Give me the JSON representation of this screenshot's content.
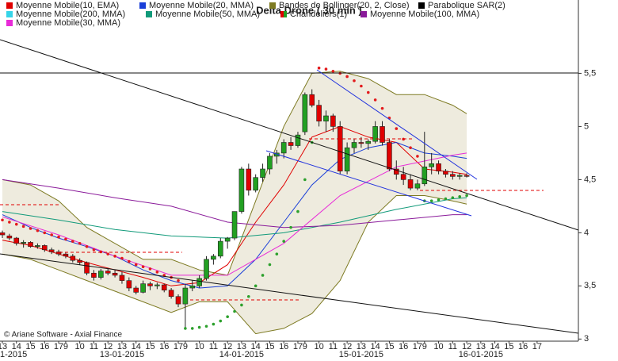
{
  "chart_data": {
    "type": "candlestick",
    "title": "Delta Drone  ( 30 min )",
    "footer": "© Ariane Software - Axial Finance",
    "ylim": [
      2.98,
      6.19
    ],
    "yticks": [
      3,
      {
        "value": 3.5,
        "label": "3,5"
      },
      4,
      {
        "value": 4.5,
        "label": "4,5"
      },
      5,
      {
        "value": 5.5,
        "label": "5,5"
      }
    ],
    "categories": [
      "13",
      null,
      "14",
      null,
      "15",
      null,
      "16",
      null,
      "17",
      "9",
      null,
      "10",
      null,
      "11",
      null,
      "12",
      null,
      "13",
      null,
      "14",
      null,
      "15",
      null,
      "16",
      null,
      "17",
      "9",
      null,
      "10",
      null,
      "11",
      null,
      "12",
      null,
      "13",
      null,
      "14",
      null,
      "15",
      null,
      "16",
      null,
      "17",
      "9",
      null,
      "10",
      null,
      "11",
      null,
      "12",
      null,
      "13",
      null,
      "14",
      null,
      "15",
      null,
      "16",
      null,
      "17",
      "9",
      null,
      "10",
      null,
      "11",
      null,
      "12",
      null,
      "13",
      null,
      "14",
      null,
      "15",
      null,
      "16",
      null,
      "17"
    ],
    "dates": [
      "1-2015",
      "13-01-2015",
      "14-01-2015",
      "15-01-2015",
      "16-01-2015"
    ],
    "series": [
      {
        "name": "Moyenne Mobile(10, EMA)",
        "color": "#e00000",
        "kind": "line",
        "x": [
          0,
          4,
          8,
          12,
          16,
          20,
          24,
          28,
          32,
          36,
          40,
          44,
          48,
          52,
          56,
          60,
          64,
          66
        ],
        "values": [
          3.93,
          3.88,
          3.8,
          3.72,
          3.65,
          3.58,
          3.5,
          3.53,
          3.7,
          4.1,
          4.45,
          4.9,
          5.0,
          4.9,
          4.85,
          4.6,
          4.57,
          4.55
        ]
      },
      {
        "name": "Moyenne Mobile(20, MMA)",
        "color": "#1a3fd8",
        "kind": "line",
        "x": [
          0,
          4,
          8,
          12,
          16,
          20,
          24,
          28,
          32,
          36,
          40,
          44,
          48,
          52,
          56,
          60,
          64,
          66
        ],
        "values": [
          4.17,
          4.05,
          3.95,
          3.87,
          3.78,
          3.65,
          3.55,
          3.48,
          3.5,
          3.75,
          4.1,
          4.45,
          4.69,
          4.8,
          4.85,
          4.75,
          4.72,
          4.7
        ]
      },
      {
        "name": "Bandes de Bollinger(20, 2, Close)",
        "color": "#7d7a22",
        "fill": "#ebe7d8",
        "kind": "band",
        "x": [
          0,
          4,
          8,
          12,
          16,
          20,
          24,
          28,
          32,
          36,
          40,
          44,
          48,
          52,
          56,
          60,
          64,
          66
        ],
        "upper": [
          4.5,
          4.45,
          4.3,
          4.05,
          3.9,
          3.75,
          3.75,
          3.65,
          3.6,
          4.3,
          5.0,
          5.5,
          5.52,
          5.45,
          5.3,
          5.3,
          5.2,
          5.12
        ],
        "lower": [
          3.8,
          3.75,
          3.65,
          3.55,
          3.45,
          3.35,
          3.25,
          3.35,
          3.35,
          3.05,
          3.1,
          3.24,
          3.55,
          4.1,
          4.35,
          4.35,
          4.3,
          4.27
        ]
      },
      {
        "name": "Parabolique SAR(2)",
        "color": "#000000",
        "kind": "dots",
        "above_color": "#e31a1c",
        "below_color": "#2ca02c",
        "x": [
          0,
          1,
          2,
          3,
          4,
          5,
          6,
          7,
          8,
          9,
          10,
          11,
          12,
          13,
          14,
          15,
          16,
          17,
          18,
          19,
          20,
          21,
          22,
          23,
          24,
          25,
          26,
          27,
          28,
          29,
          30,
          31,
          32,
          33,
          34,
          35,
          36,
          37,
          38,
          39,
          40,
          41,
          42,
          43,
          44,
          45,
          46,
          47,
          48,
          49,
          50,
          51,
          52,
          53,
          54,
          55,
          56,
          57,
          58,
          59,
          60,
          61,
          62,
          63,
          64,
          65,
          66
        ],
        "values": [
          4.12,
          4.1,
          4.08,
          4.06,
          4.04,
          4.02,
          4.0,
          3.98,
          3.96,
          3.94,
          3.92,
          3.9,
          3.87,
          3.84,
          3.82,
          3.8,
          3.78,
          3.76,
          3.73,
          3.7,
          3.68,
          3.66,
          3.63,
          3.6,
          3.58,
          3.55,
          3.1,
          3.1,
          3.11,
          3.12,
          3.14,
          3.17,
          3.21,
          3.26,
          3.32,
          3.4,
          3.5,
          3.6,
          3.7,
          3.8,
          3.92,
          4.05,
          4.2,
          4.5,
          4.85,
          5.55,
          5.54,
          5.52,
          5.5,
          5.47,
          5.43,
          5.38,
          5.32,
          5.25,
          5.17,
          5.08,
          4.98,
          4.88,
          4.8,
          4.72,
          4.3,
          4.3,
          4.31,
          4.32,
          4.33,
          4.34,
          4.35
        ]
      },
      {
        "name": "Moyenne Mobile(200, MMA)",
        "color": "#35d4e8",
        "kind": "line"
      },
      {
        "name": "Moyenne Mobile(50, MMA)",
        "color": "#119a7a",
        "kind": "line",
        "x": [
          0,
          8,
          16,
          24,
          32,
          40,
          48,
          56,
          64,
          66
        ],
        "values": [
          4.2,
          4.12,
          4.03,
          3.97,
          3.95,
          4.0,
          4.1,
          4.22,
          4.32,
          4.33
        ]
      },
      {
        "name": "Chandeliers(1)",
        "color": "#e00000",
        "kind": "candles",
        "up_color": "#22a022",
        "down_color": "#e00000",
        "open": [
          4.0,
          3.97,
          3.95,
          3.9,
          3.91,
          3.87,
          3.88,
          3.84,
          3.82,
          3.8,
          3.78,
          3.74,
          3.72,
          3.62,
          3.58,
          3.64,
          3.62,
          3.6,
          3.55,
          3.48,
          3.44,
          3.52,
          3.5,
          3.51,
          3.46,
          3.4,
          3.33,
          3.48,
          3.5,
          3.57,
          3.75,
          3.78,
          3.92,
          3.95,
          4.2,
          4.6,
          4.4,
          4.52,
          4.6,
          4.72,
          4.75,
          4.85,
          4.82,
          4.95,
          5.3,
          5.2,
          5.05,
          5.1,
          5.0,
          4.58,
          4.8,
          4.85,
          4.84,
          4.86,
          5.0,
          4.85,
          4.6,
          4.55,
          4.5,
          4.42,
          4.46,
          4.62,
          4.65,
          4.58,
          4.55,
          4.53,
          4.54,
          null,
          null,
          null,
          null,
          null,
          null,
          null,
          null,
          null,
          null
        ],
        "high": [
          4.02,
          3.99,
          3.96,
          3.93,
          3.92,
          3.9,
          3.89,
          3.86,
          3.84,
          3.82,
          3.8,
          3.76,
          3.73,
          3.65,
          3.66,
          3.66,
          3.65,
          3.63,
          3.58,
          3.5,
          3.55,
          3.54,
          3.53,
          3.52,
          3.48,
          3.42,
          3.52,
          3.55,
          3.6,
          3.78,
          3.8,
          3.95,
          3.96,
          4.2,
          4.62,
          4.65,
          4.55,
          4.65,
          4.75,
          4.78,
          4.88,
          4.9,
          4.95,
          5.32,
          5.35,
          5.25,
          5.15,
          5.12,
          5.05,
          4.85,
          4.88,
          4.9,
          4.88,
          5.05,
          5.05,
          4.88,
          4.68,
          4.62,
          4.55,
          4.5,
          4.95,
          4.75,
          4.68,
          4.6,
          4.58,
          4.56,
          4.56,
          null,
          null,
          null,
          null,
          null,
          null,
          null,
          null,
          null,
          null
        ],
        "low": [
          3.95,
          3.93,
          3.88,
          3.86,
          3.86,
          3.85,
          3.82,
          3.8,
          3.78,
          3.76,
          3.72,
          3.7,
          3.6,
          3.55,
          3.56,
          3.6,
          3.58,
          3.52,
          3.45,
          3.42,
          3.43,
          3.46,
          3.47,
          3.44,
          3.38,
          3.3,
          3.1,
          3.45,
          3.48,
          3.55,
          3.7,
          3.76,
          3.85,
          3.93,
          4.18,
          4.35,
          4.38,
          4.48,
          4.55,
          4.65,
          4.7,
          4.78,
          4.8,
          4.92,
          5.18,
          5.0,
          4.95,
          4.95,
          4.55,
          4.55,
          4.75,
          4.8,
          4.78,
          4.84,
          4.82,
          4.58,
          4.5,
          4.45,
          4.4,
          4.4,
          4.44,
          4.55,
          4.55,
          4.52,
          4.5,
          4.5,
          4.52,
          null,
          null,
          null,
          null,
          null,
          null,
          null,
          null,
          null,
          null
        ],
        "close": [
          3.98,
          3.95,
          3.9,
          3.91,
          3.87,
          3.88,
          3.84,
          3.82,
          3.8,
          3.78,
          3.74,
          3.72,
          3.62,
          3.58,
          3.64,
          3.62,
          3.6,
          3.55,
          3.48,
          3.44,
          3.52,
          3.5,
          3.51,
          3.46,
          3.4,
          3.33,
          3.48,
          3.5,
          3.57,
          3.75,
          3.78,
          3.92,
          3.95,
          4.2,
          4.6,
          4.4,
          4.52,
          4.6,
          4.72,
          4.75,
          4.85,
          4.82,
          4.92,
          5.3,
          5.2,
          5.05,
          5.1,
          5.0,
          4.58,
          4.8,
          4.85,
          4.84,
          4.86,
          5.0,
          4.85,
          4.6,
          4.55,
          4.5,
          4.42,
          4.46,
          4.62,
          4.65,
          4.58,
          4.55,
          4.53,
          4.54,
          4.53,
          null,
          null,
          null,
          null,
          null,
          null,
          null,
          null,
          null,
          null
        ]
      },
      {
        "name": "Moyenne Mobile(100, MMA)",
        "color": "#8a1a9a",
        "kind": "line",
        "x": [
          0,
          8,
          16,
          24,
          32,
          40,
          48,
          56,
          64,
          66
        ],
        "values": [
          4.5,
          4.42,
          4.33,
          4.25,
          4.1,
          4.05,
          4.07,
          4.12,
          4.17,
          4.17
        ]
      },
      {
        "name": "Moyenne Mobile(30, MMA)",
        "color": "#e82ad8",
        "kind": "line",
        "x": [
          0,
          8,
          16,
          24,
          32,
          40,
          48,
          56,
          64,
          66
        ],
        "values": [
          4.15,
          3.98,
          3.78,
          3.6,
          3.6,
          3.9,
          4.35,
          4.62,
          4.73,
          4.75
        ]
      }
    ]
  }
}
